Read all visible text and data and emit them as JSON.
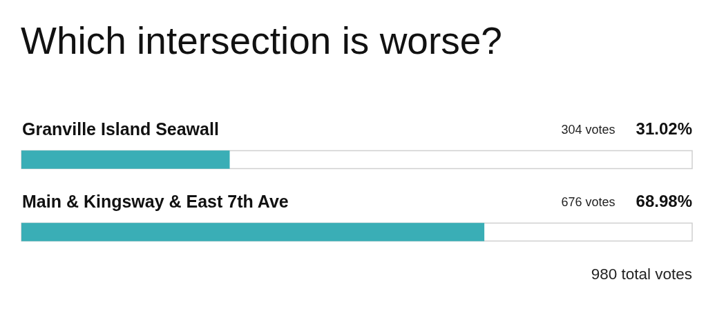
{
  "chart_data": {
    "type": "bar",
    "orientation": "horizontal",
    "title": "Which intersection is worse?",
    "categories": [
      "Granville Island Seawall",
      "Main & Kingsway & East 7th Ave"
    ],
    "values": [
      31.02,
      68.98
    ],
    "value_labels": [
      "31.02%",
      "68.98%"
    ],
    "color": "#3aaeb6",
    "xlim": [
      0,
      100
    ],
    "tick_labels": "y",
    "annotations": [
      "304 votes",
      "676 votes",
      "980 total votes"
    ]
  }
}
